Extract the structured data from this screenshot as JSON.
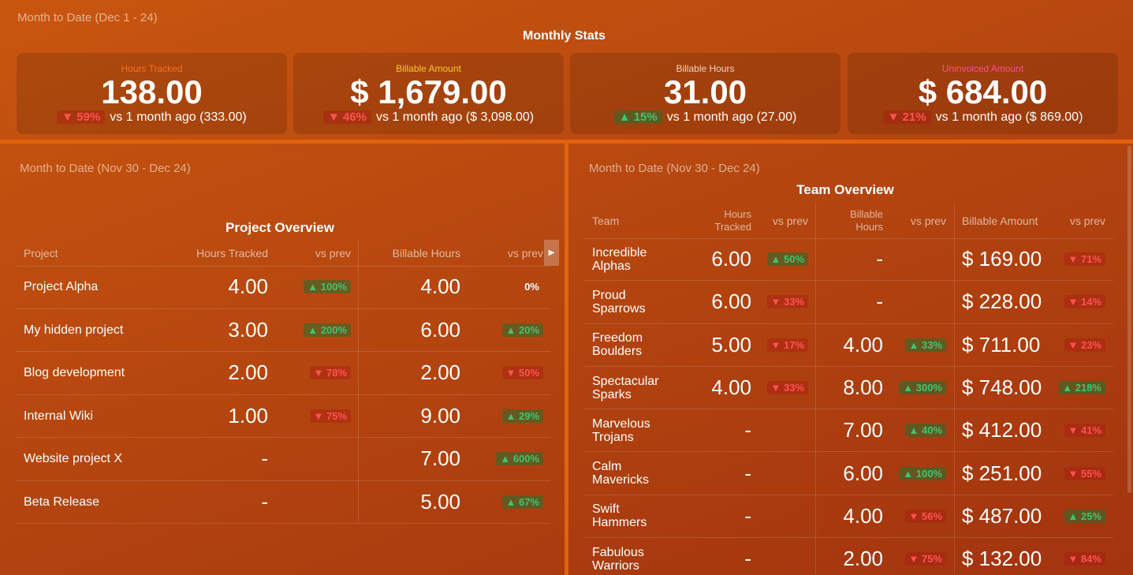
{
  "monthly_stats": {
    "period": "Month to Date (Dec 1 - 24)",
    "title": "Monthly Stats",
    "cards": [
      {
        "label": "Hours Tracked",
        "value": "138.00",
        "change": "▼ 59%",
        "comparison": "vs 1 month ago (333.00)"
      },
      {
        "label": "Billable Amount",
        "value": "$ 1,679.00",
        "change": "▼ 46%",
        "comparison": "vs 1 month ago ($ 3,098.00)"
      },
      {
        "label": "Billable Hours",
        "value": "31.00",
        "change": "▲ 15%",
        "comparison": "vs 1 month ago (27.00)"
      },
      {
        "label": "Uninvoiced Amount",
        "value": "$ 684.00",
        "change": "▼ 21%",
        "comparison": "vs 1 month ago ($ 869.00)"
      }
    ]
  },
  "project_overview": {
    "period": "Month to Date (Nov 30 - Dec 24)",
    "title": "Project Overview",
    "columns": [
      "Project",
      "Hours Tracked",
      "vs prev",
      "Billable Hours",
      "vs prev"
    ],
    "rows": [
      [
        "Project Alpha",
        "4.00",
        "▲ 100%",
        "4.00",
        "0%"
      ],
      [
        "My hidden project",
        "3.00",
        "▲ 200%",
        "6.00",
        "▲ 20%"
      ],
      [
        "Blog development",
        "2.00",
        "▼ 78%",
        "2.00",
        "▼ 50%"
      ],
      [
        "Internal Wiki",
        "1.00",
        "▼ 75%",
        "9.00",
        "▲ 29%"
      ],
      [
        "Website project X",
        "-",
        null,
        "7.00",
        "▲ 600%"
      ],
      [
        "Beta Release",
        "-",
        null,
        "5.00",
        "▲ 67%"
      ]
    ]
  },
  "team_overview": {
    "period": "Month to Date (Nov 30 - Dec 24)",
    "title": "Team Overview",
    "columns": [
      "Team",
      "Hours Tracked",
      "vs prev",
      "Billable Hours",
      "vs prev",
      "Billable Amount",
      "vs prev"
    ],
    "rows": [
      [
        "Incredible Alphas",
        "6.00",
        "▲ 50%",
        "-",
        null,
        "$ 169.00",
        "▼ 71%"
      ],
      [
        "Proud Sparrows",
        "6.00",
        "▼ 33%",
        "-",
        null,
        "$ 228.00",
        "▼ 14%"
      ],
      [
        "Freedom Boulders",
        "5.00",
        "▼ 17%",
        "4.00",
        "▲ 33%",
        "$ 711.00",
        "▼ 23%"
      ],
      [
        "Spectacular Sparks",
        "4.00",
        "▼ 33%",
        "8.00",
        "▲ 300%",
        "$ 748.00",
        "▲ 218%"
      ],
      [
        "Marvelous Trojans",
        "-",
        null,
        "7.00",
        "▲ 40%",
        "$ 412.00",
        "▼ 41%"
      ],
      [
        "Calm Mavericks",
        "-",
        null,
        "6.00",
        "▲ 100%",
        "$ 251.00",
        "▼ 55%"
      ],
      [
        "Swift Hammers",
        "-",
        null,
        "4.00",
        "▼ 56%",
        "$ 487.00",
        "▲ 25%"
      ],
      [
        "Fabulous Warriors",
        "-",
        null,
        "2.00",
        "▼ 75%",
        "$ 132.00",
        "▼ 84%"
      ]
    ]
  }
}
